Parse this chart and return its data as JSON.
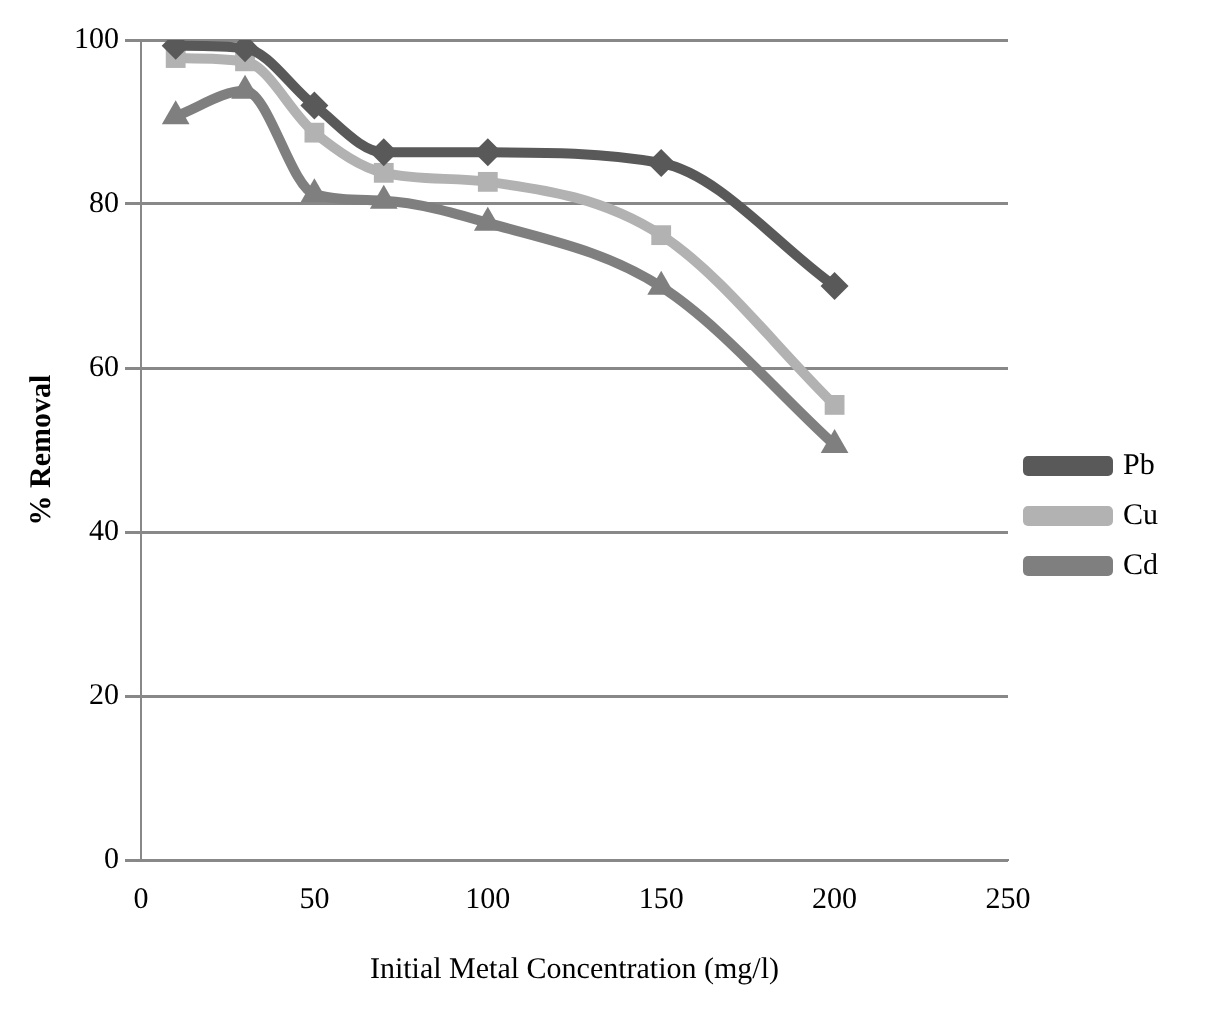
{
  "chart_data": {
    "type": "line",
    "xlabel": "Initial Metal Concentration (mg/l)",
    "ylabel": "% Removal",
    "x": [
      10,
      30,
      50,
      70,
      100,
      150,
      200
    ],
    "series": [
      {
        "name": "Pb",
        "color": "#595959",
        "marker": "diamond",
        "values": [
          99.3,
          99,
          92,
          86.3,
          86.3,
          85,
          70
        ]
      },
      {
        "name": "Cu",
        "color": "#b2b2b2",
        "marker": "square",
        "values": [
          97.8,
          97.4,
          88.7,
          83.8,
          82.7,
          76.2,
          55.5
        ]
      },
      {
        "name": "Cd",
        "color": "#7f7f7f",
        "marker": "triangle",
        "values": [
          90.7,
          93.8,
          81.2,
          80.4,
          77.7,
          69.9,
          50.6
        ]
      }
    ],
    "xlim": [
      0,
      250
    ],
    "xticks": [
      0,
      50,
      100,
      150,
      200,
      250
    ],
    "ylim": [
      0,
      100
    ],
    "yticks": [
      0,
      20,
      40,
      60,
      80,
      100
    ],
    "grid": "y",
    "legend": "right"
  }
}
